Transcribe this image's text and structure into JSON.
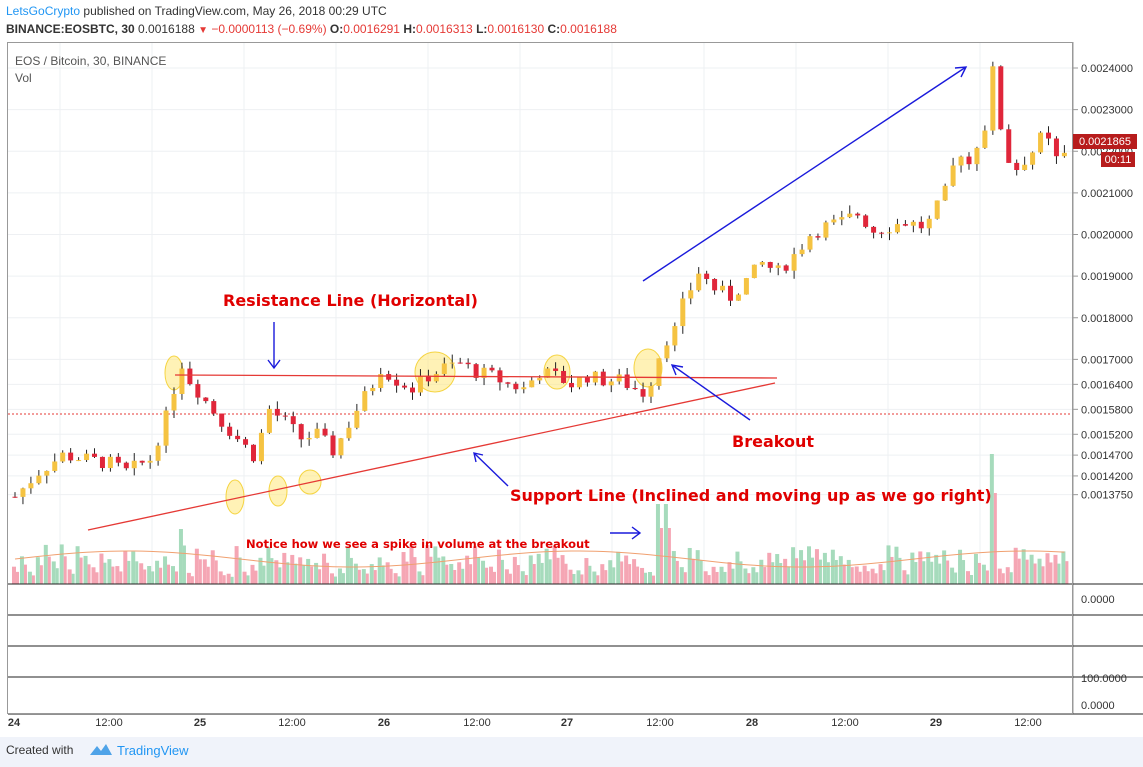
{
  "header": {
    "author": "LetsGoCrypto",
    "published": "published on TradingView.com, May 26, 2018 00:29 UTC",
    "symbol": "BINANCE:EOSBTC, 30",
    "last": "0.0016188",
    "change": "−0.0000113 (−0.69%)",
    "o_label": "O:",
    "o": "0.0016291",
    "h_label": "H:",
    "h": "0.0016313",
    "l_label": "L:",
    "l": "0.0016130",
    "c_label": "C:",
    "c": "0.0016188"
  },
  "pane": {
    "title": "EOS / Bitcoin, 30, BINANCE",
    "vol_label": "Vol"
  },
  "price_badge": {
    "value": "0.0021865",
    "timer": "00:11"
  },
  "annotations": {
    "resistance": "Resistance Line (Horizontal)",
    "breakout": "Breakout",
    "support": "Support Line (Inclined and moving up as we go right)",
    "volume_note": "Notice how we see a spike in volume at the breakout"
  },
  "footer": {
    "created_with": "Created with",
    "brand": "TradingView"
  },
  "colors": {
    "up": "#f5c342",
    "down": "#e0263a",
    "vol_up": "#a6dbbc",
    "vol_down": "#f5a6b4",
    "annotation": "#e00000",
    "arrow": "#1a1adb",
    "highlight": "#ffe87a"
  },
  "chart_data": {
    "type": "candlestick",
    "y_axis_ticks": [
      "0.0024000",
      "0.0023000",
      "0.0022000",
      "0.0021000",
      "0.0020000",
      "0.0019000",
      "0.0018000",
      "0.0017000",
      "0.0016400",
      "0.0015800",
      "0.0015200",
      "0.0014700",
      "0.0014200",
      "0.0013750"
    ],
    "lower_pane_ticks": [
      "0.0000",
      "100.0000",
      "0.0000"
    ],
    "x_axis_ticks": [
      "24",
      "12:00",
      "25",
      "12:00",
      "26",
      "12:00",
      "27",
      "12:00",
      "28",
      "12:00",
      "29",
      "12:00"
    ],
    "price_path": [
      [
        0,
        0.00137
      ],
      [
        3,
        0.00143
      ],
      [
        6,
        0.00147
      ],
      [
        9,
        0.00146
      ],
      [
        12,
        0.00145
      ],
      [
        14,
        0.00143
      ],
      [
        17,
        0.00146
      ],
      [
        19,
        0.00156
      ],
      [
        20,
        0.00163
      ],
      [
        21,
        0.00169
      ],
      [
        22,
        0.00165
      ],
      [
        24,
        0.0016
      ],
      [
        26,
        0.00155
      ],
      [
        28,
        0.00151
      ],
      [
        30,
        0.00147
      ],
      [
        31,
        0.00152
      ],
      [
        32,
        0.00158
      ],
      [
        34,
        0.00155
      ],
      [
        36,
        0.00151
      ],
      [
        38,
        0.00152
      ],
      [
        40,
        0.00148
      ],
      [
        41,
        0.00151
      ],
      [
        43,
        0.00158
      ],
      [
        45,
        0.00164
      ],
      [
        46,
        0.00168
      ],
      [
        48,
        0.00165
      ],
      [
        50,
        0.00163
      ],
      [
        52,
        0.00166
      ],
      [
        54,
        0.00168
      ],
      [
        56,
        0.00169
      ],
      [
        58,
        0.00167
      ],
      [
        60,
        0.00166
      ],
      [
        62,
        0.00164
      ],
      [
        64,
        0.00163
      ],
      [
        66,
        0.00167
      ],
      [
        68,
        0.00166
      ],
      [
        70,
        0.00164
      ],
      [
        72,
        0.00166
      ],
      [
        74,
        0.00165
      ],
      [
        76,
        0.00165
      ],
      [
        78,
        0.00163
      ],
      [
        79,
        0.00162
      ],
      [
        80,
        0.00165
      ],
      [
        81,
        0.00171
      ],
      [
        82,
        0.00175
      ],
      [
        83,
        0.00177
      ],
      [
        84,
        0.00183
      ],
      [
        85,
        0.00187
      ],
      [
        86,
        0.00191
      ],
      [
        88,
        0.00187
      ],
      [
        90,
        0.00185
      ],
      [
        92,
        0.00189
      ],
      [
        94,
        0.00193
      ],
      [
        96,
        0.00191
      ],
      [
        98,
        0.00195
      ],
      [
        100,
        0.002
      ],
      [
        102,
        0.00202
      ],
      [
        104,
        0.00203
      ],
      [
        106,
        0.00205
      ],
      [
        108,
        0.00201
      ],
      [
        110,
        0.00202
      ],
      [
        112,
        0.00203
      ],
      [
        114,
        0.00202
      ],
      [
        115,
        0.00203
      ],
      [
        117,
        0.0021
      ],
      [
        118,
        0.00216
      ],
      [
        119,
        0.0022
      ],
      [
        120,
        0.00217
      ],
      [
        121,
        0.00222
      ],
      [
        122,
        0.00226
      ],
      [
        123,
        0.00239
      ],
      [
        124,
        0.00226
      ],
      [
        125,
        0.00218
      ],
      [
        126,
        0.00216
      ],
      [
        127,
        0.00218
      ],
      [
        128,
        0.0022
      ],
      [
        129,
        0.00223
      ],
      [
        130,
        0.00222
      ],
      [
        131,
        0.00218
      ],
      [
        132,
        0.00219
      ]
    ],
    "overlays": [
      "horizontal resistance line",
      "inclined support line"
    ]
  }
}
